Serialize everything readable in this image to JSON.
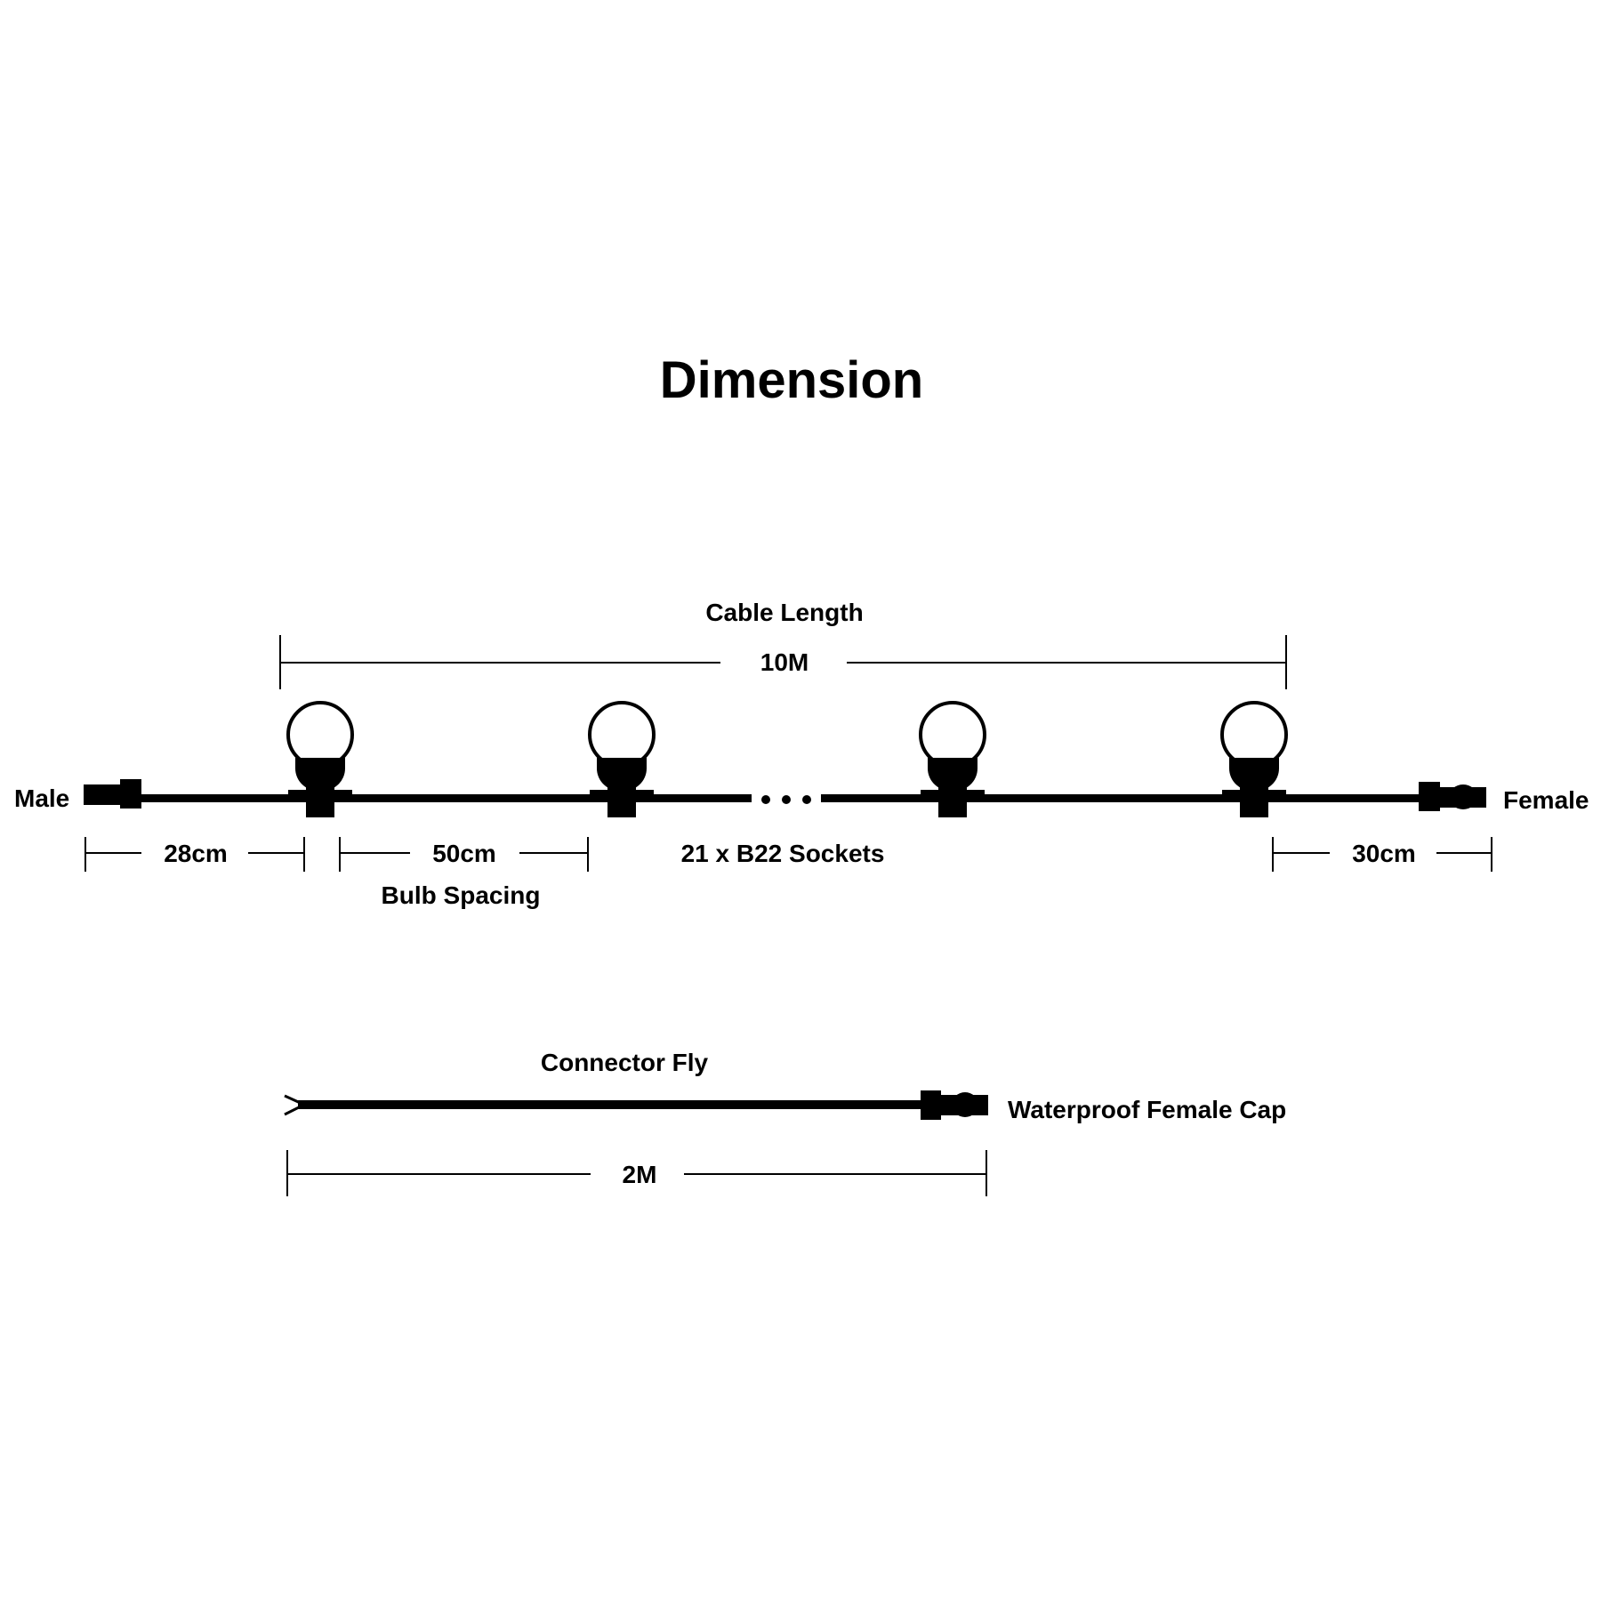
{
  "title": "Dimension",
  "main_string": {
    "cable_length_label": "Cable Length",
    "cable_length_value": "10M",
    "male_label": "Male",
    "female_label": "Female",
    "lead_male_value": "28cm",
    "bulb_spacing_value": "50cm",
    "bulb_spacing_label": "Bulb Spacing",
    "sockets_label": "21 x B22 Sockets",
    "lead_female_value": "30cm"
  },
  "connector_fly": {
    "label": "Connector Fly",
    "cap_label": "Waterproof Female Cap",
    "length_value": "2M"
  },
  "colors": {
    "ink": "#000000",
    "background": "#ffffff"
  }
}
